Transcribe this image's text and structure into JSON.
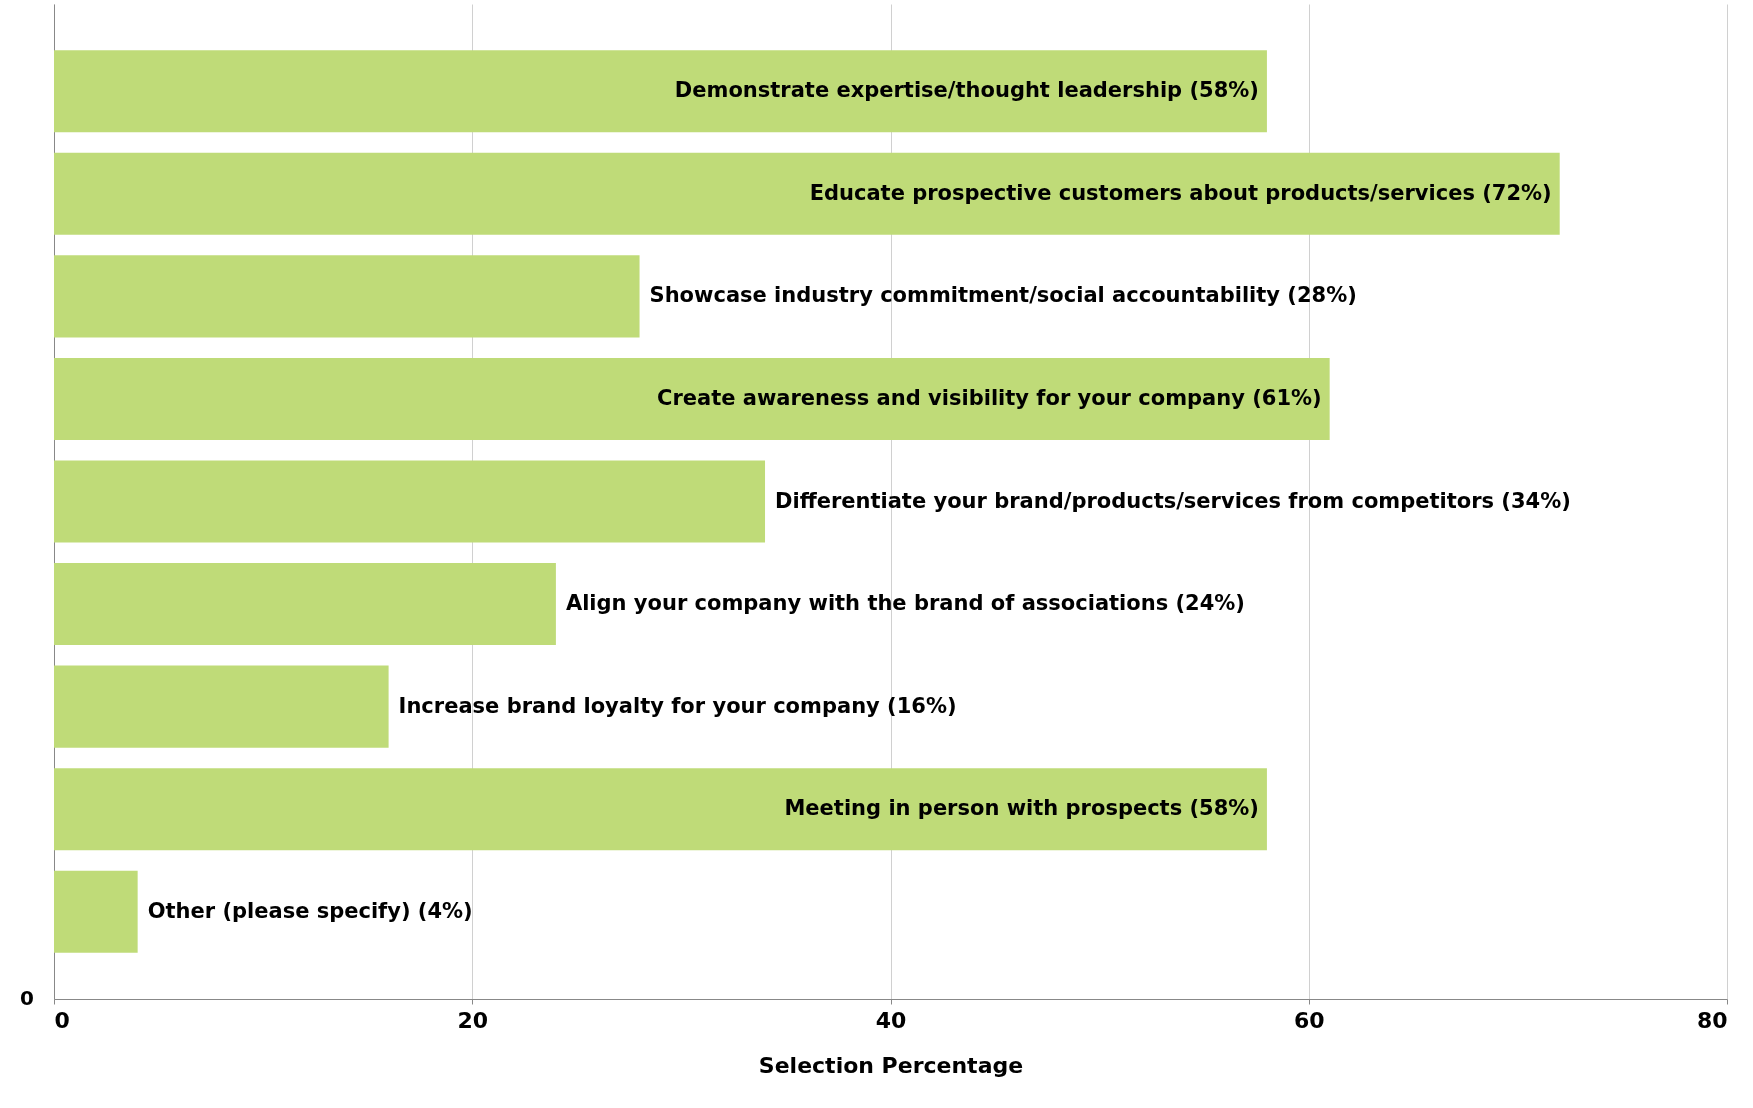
{
  "chart_data": {
    "type": "bar",
    "orientation": "horizontal",
    "xlabel": "Selection Percentage",
    "categories": [
      null,
      null,
      null,
      null,
      null,
      null,
      null,
      null,
      null
    ],
    "values": [
      58,
      72,
      28,
      61,
      34,
      24,
      16,
      58,
      4
    ],
    "value_labels": [
      "Demonstrate expertise/thought leadership (58%)",
      "Educate prospective customers about products/services (72%)",
      "Showcase industry commitment/social accountability (28%)",
      "Create awareness and visibility for your company (61%)",
      "Differentiate your brand/products/services from competitors (34%)",
      "Align your company with the brand of associations (24%)",
      "Increase brand loyalty for your company (16%)",
      "Meeting in person with prospects (58%)",
      "Other (please specify) (4%)"
    ],
    "color": "#bfdb78",
    "xlim": [
      0,
      80
    ],
    "xticks": [
      0,
      20,
      40,
      60,
      80
    ],
    "grid": "x",
    "annotations": [
      "0"
    ]
  }
}
